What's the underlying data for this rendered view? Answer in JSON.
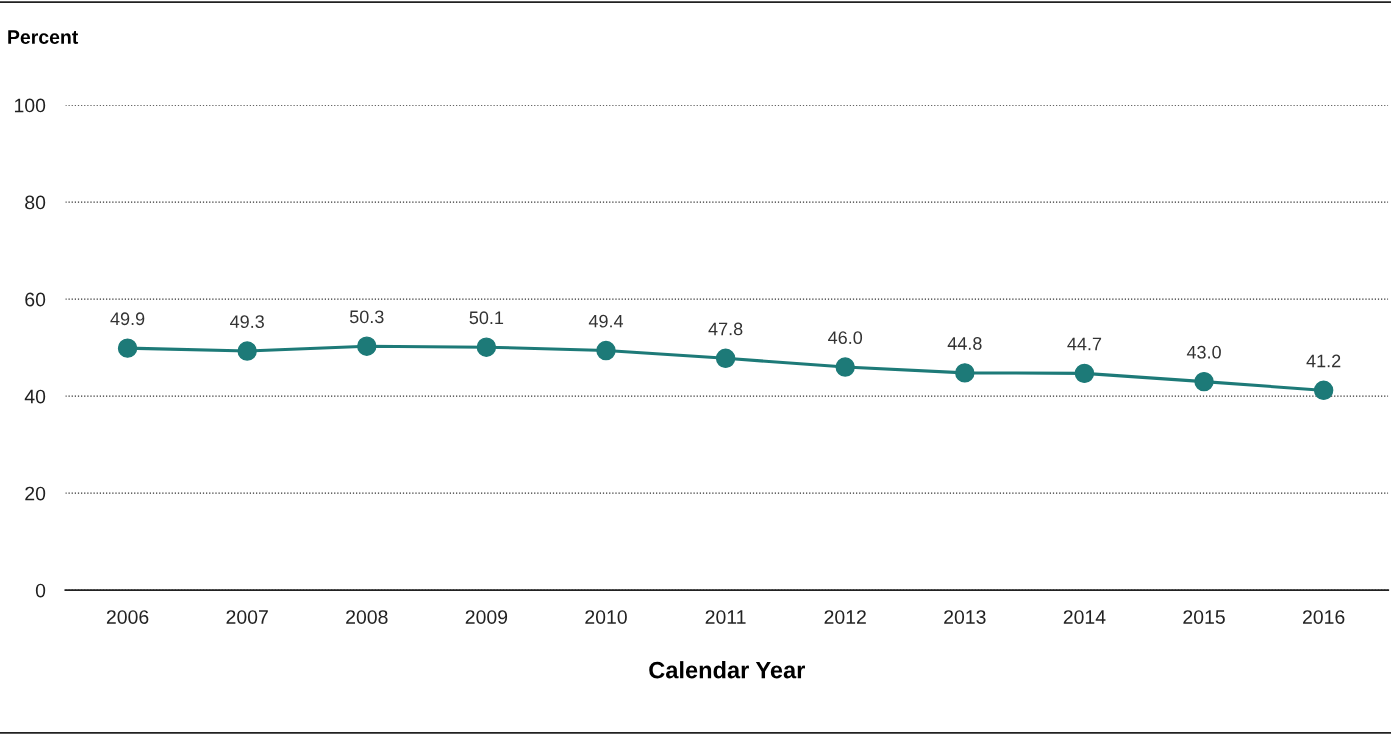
{
  "chart_data": {
    "type": "line",
    "ylabel": "Percent",
    "xlabel": "Calendar Year",
    "categories": [
      "2006",
      "2007",
      "2008",
      "2009",
      "2010",
      "2011",
      "2012",
      "2013",
      "2014",
      "2015",
      "2016"
    ],
    "series": [
      {
        "color": "#1d7a78",
        "values": [
          49.9,
          49.3,
          50.3,
          50.1,
          49.4,
          47.8,
          46.0,
          44.8,
          44.7,
          43.0,
          41.2
        ],
        "value_labels": [
          "49.9",
          "49.3",
          "50.3",
          "50.1",
          "49.4",
          "47.8",
          "46.0",
          "44.8",
          "44.7",
          "43.0",
          "41.2"
        ]
      }
    ],
    "ylim": [
      0,
      100
    ],
    "yticks": [
      0,
      20,
      40,
      60,
      80,
      100
    ],
    "grid": "y",
    "marker": "circle",
    "line_style": "solid"
  }
}
